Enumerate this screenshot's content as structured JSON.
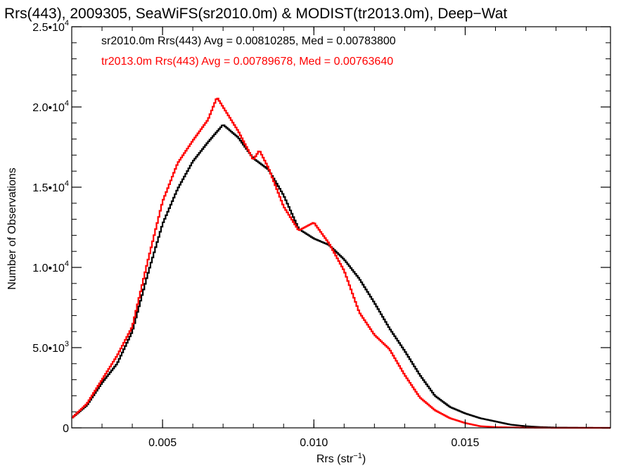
{
  "chart_data": {
    "type": "line",
    "title": "Rrs(443), 2009305, SeaWiFS(sr2010.0m) & MODIST(tr2013.0m), Deep−Wat",
    "xlabel": "Rrs (str",
    "xlabel_sup": "−1",
    "xlabel_close": ")",
    "ylabel": "Number of Observations",
    "xlim": [
      0.002,
      0.0198
    ],
    "ylim": [
      0,
      25000
    ],
    "xticks": [
      {
        "value": 0.005,
        "label": "0.005"
      },
      {
        "value": 0.01,
        "label": "0.010"
      },
      {
        "value": 0.015,
        "label": "0.015"
      }
    ],
    "yticks": [
      {
        "value": 0,
        "base": "0",
        "exp": ""
      },
      {
        "value": 5000,
        "base": "5.0•10",
        "exp": "3"
      },
      {
        "value": 10000,
        "base": "1.0•10",
        "exp": "4"
      },
      {
        "value": 15000,
        "base": "1.5•10",
        "exp": "4"
      },
      {
        "value": 20000,
        "base": "2.0•10",
        "exp": "4"
      },
      {
        "value": 25000,
        "base": "2.5•10",
        "exp": "4"
      }
    ],
    "annotations": [
      {
        "text": "sr2010.0m Rrs(443) Avg = 0.00810285, Med = 0.00783800",
        "color": "#000000"
      },
      {
        "text": "tr2013.0m Rrs(443) Avg = 0.00789678, Med = 0.00763640",
        "color": "#ff0000"
      }
    ],
    "series": [
      {
        "color": "#000000",
        "points": [
          [
            0.002,
            600
          ],
          [
            0.0025,
            1400
          ],
          [
            0.003,
            2800
          ],
          [
            0.0035,
            4000
          ],
          [
            0.004,
            6000
          ],
          [
            0.0045,
            9500
          ],
          [
            0.005,
            12700
          ],
          [
            0.0055,
            14900
          ],
          [
            0.006,
            16600
          ],
          [
            0.0065,
            17800
          ],
          [
            0.007,
            18900
          ],
          [
            0.0075,
            18100
          ],
          [
            0.008,
            16800
          ],
          [
            0.0085,
            16100
          ],
          [
            0.009,
            14500
          ],
          [
            0.0095,
            12400
          ],
          [
            0.01,
            11800
          ],
          [
            0.0105,
            11400
          ],
          [
            0.011,
            10500
          ],
          [
            0.0115,
            9300
          ],
          [
            0.012,
            7800
          ],
          [
            0.0125,
            6200
          ],
          [
            0.013,
            4800
          ],
          [
            0.0135,
            3300
          ],
          [
            0.014,
            2000
          ],
          [
            0.0145,
            1300
          ],
          [
            0.015,
            900
          ],
          [
            0.0155,
            600
          ],
          [
            0.016,
            400
          ],
          [
            0.0165,
            200
          ],
          [
            0.017,
            100
          ],
          [
            0.0175,
            50
          ],
          [
            0.018,
            20
          ],
          [
            0.019,
            5
          ],
          [
            0.0198,
            0
          ]
        ]
      },
      {
        "color": "#ff0000",
        "points": [
          [
            0.002,
            600
          ],
          [
            0.0025,
            1500
          ],
          [
            0.003,
            3000
          ],
          [
            0.0035,
            4500
          ],
          [
            0.004,
            6300
          ],
          [
            0.0045,
            10300
          ],
          [
            0.005,
            14100
          ],
          [
            0.0055,
            16500
          ],
          [
            0.006,
            17900
          ],
          [
            0.0065,
            19200
          ],
          [
            0.0068,
            20600
          ],
          [
            0.007,
            20000
          ],
          [
            0.0075,
            18500
          ],
          [
            0.008,
            16700
          ],
          [
            0.0082,
            17300
          ],
          [
            0.0085,
            16200
          ],
          [
            0.009,
            13800
          ],
          [
            0.0095,
            12300
          ],
          [
            0.01,
            12800
          ],
          [
            0.0105,
            11500
          ],
          [
            0.011,
            9800
          ],
          [
            0.0115,
            7200
          ],
          [
            0.012,
            5800
          ],
          [
            0.0125,
            4900
          ],
          [
            0.013,
            3300
          ],
          [
            0.0135,
            1900
          ],
          [
            0.014,
            1100
          ],
          [
            0.0145,
            600
          ],
          [
            0.015,
            300
          ],
          [
            0.0155,
            100
          ],
          [
            0.016,
            50
          ],
          [
            0.017,
            10
          ],
          [
            0.018,
            0
          ],
          [
            0.0198,
            0
          ]
        ]
      }
    ]
  }
}
